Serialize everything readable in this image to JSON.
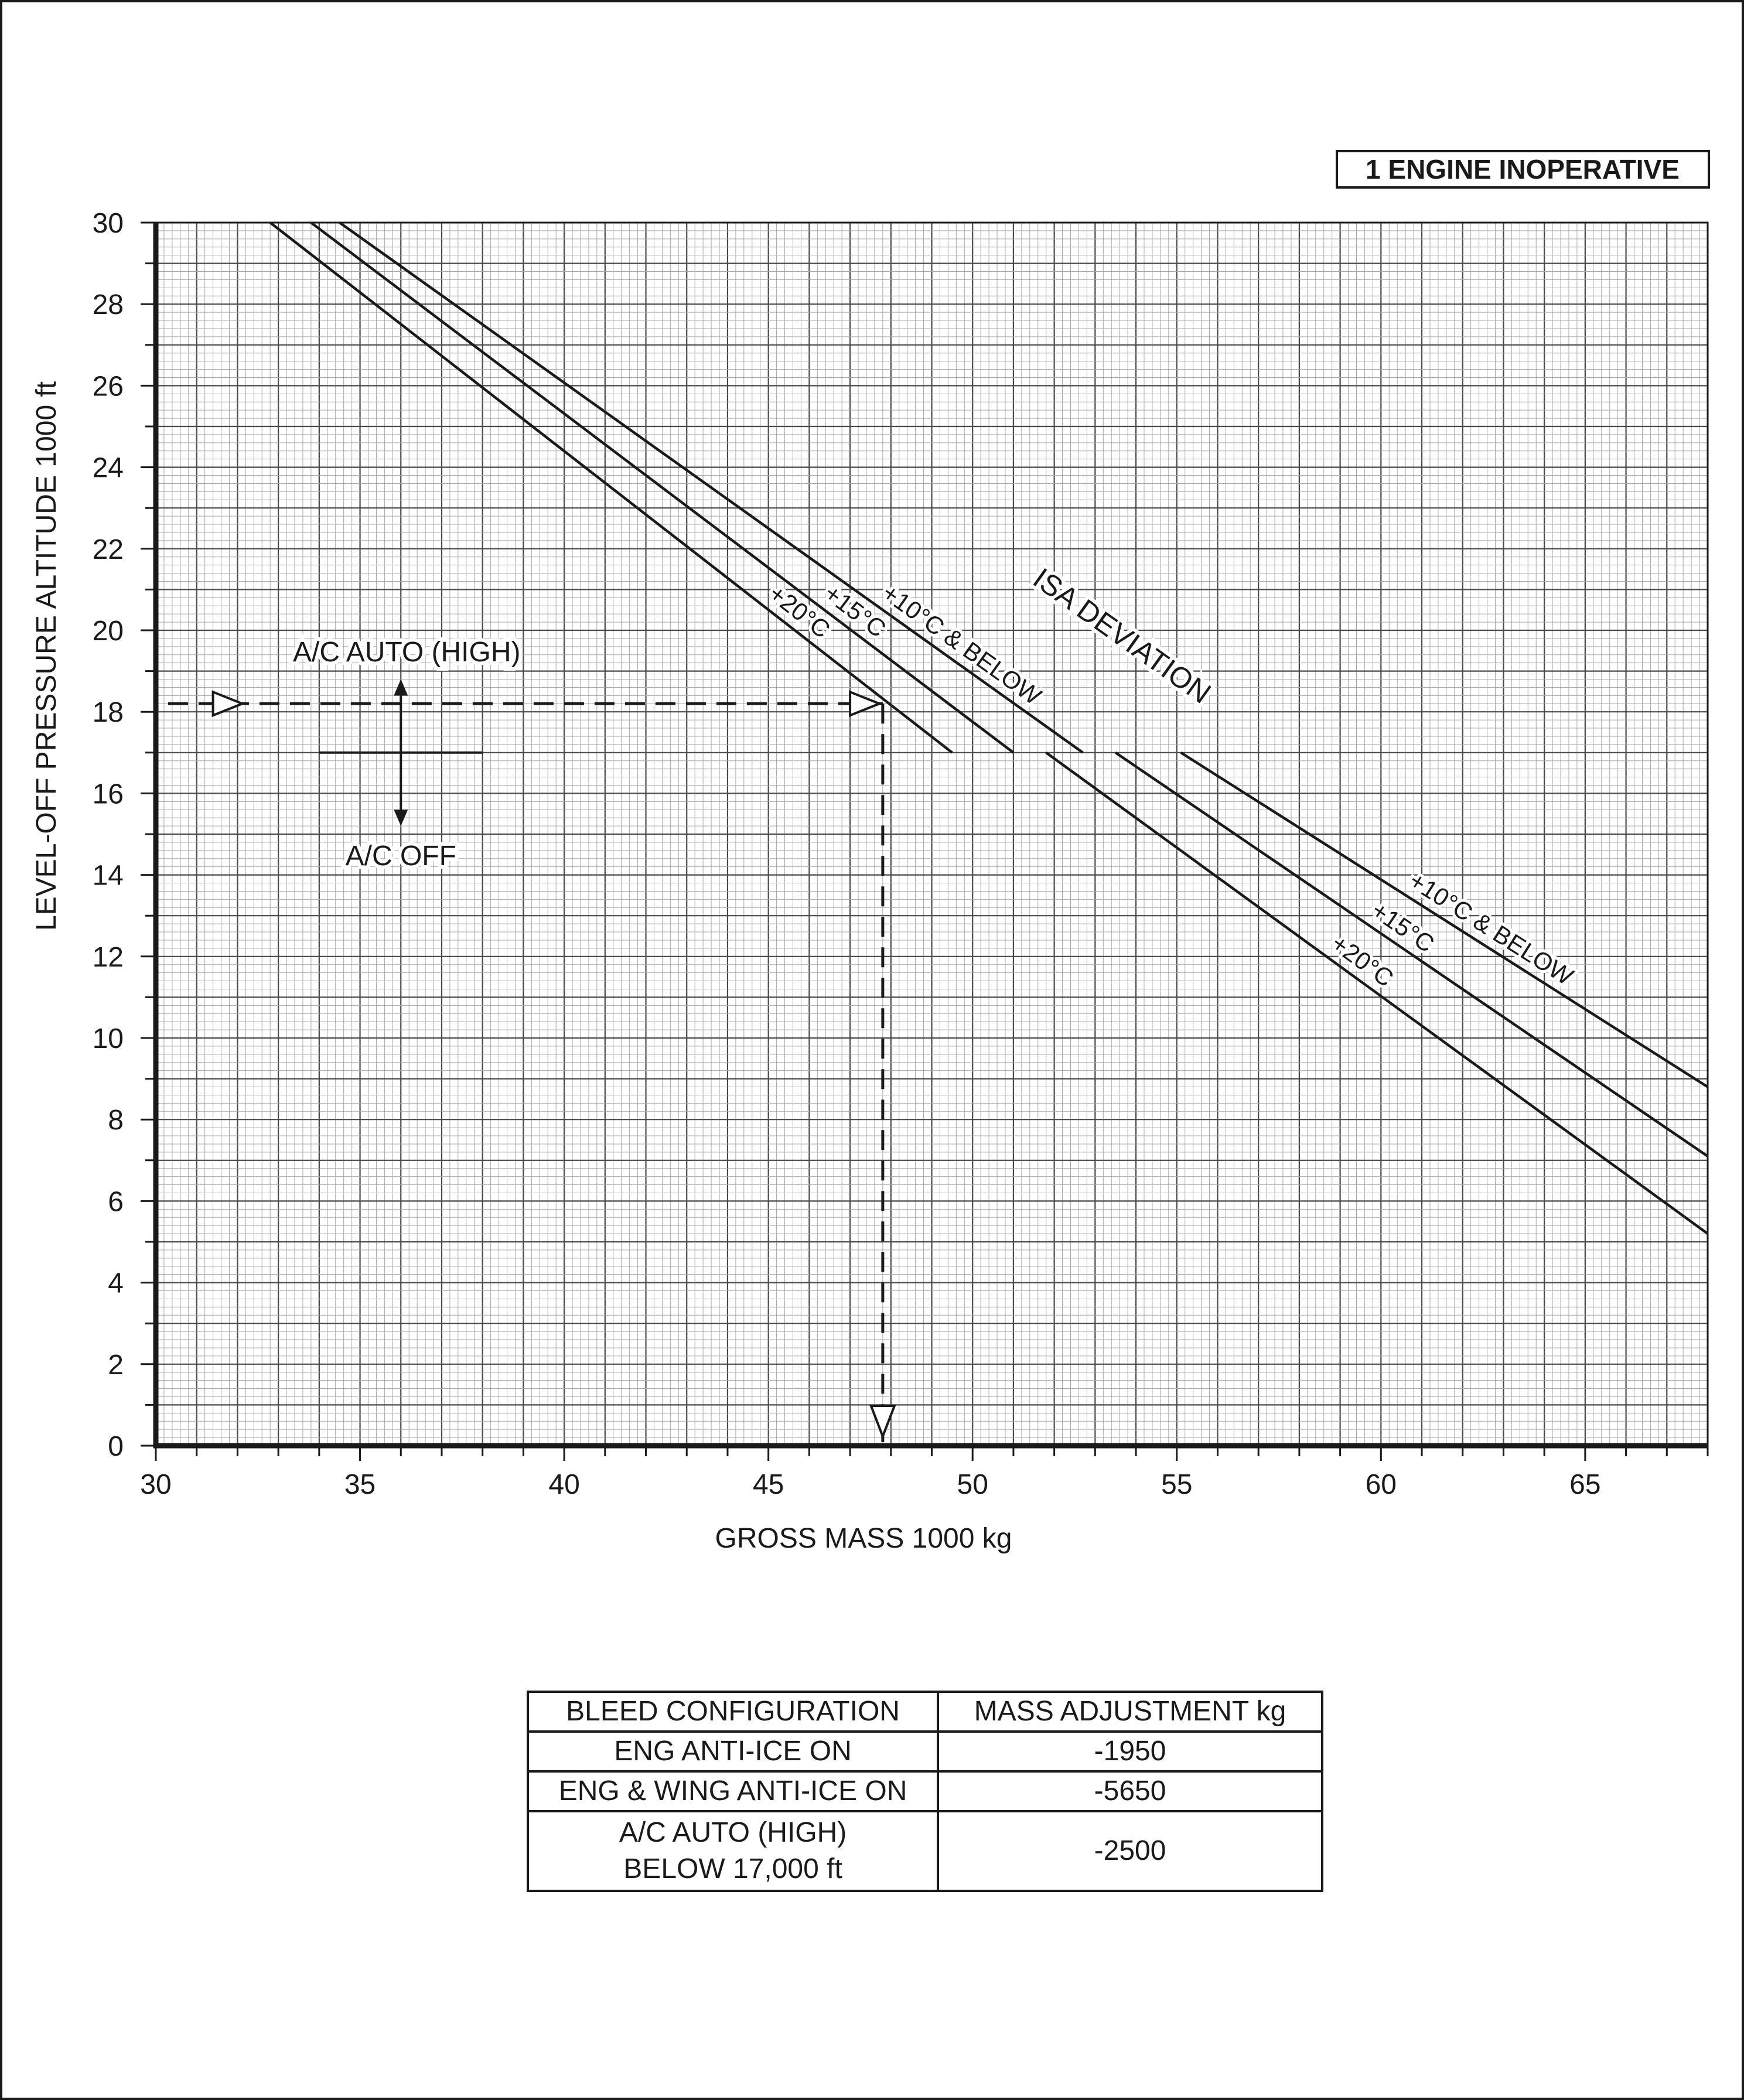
{
  "chart_data": {
    "type": "line",
    "title": "",
    "badge": "1 ENGINE INOPERATIVE",
    "xlabel": "GROSS MASS  1000 kg",
    "ylabel": "LEVEL-OFF PRESSURE ALTITUDE  1000 ft",
    "xlim": [
      30,
      68
    ],
    "ylim": [
      0,
      30
    ],
    "x_ticks": [
      "30",
      "35",
      "40",
      "45",
      "50",
      "55",
      "60",
      "65"
    ],
    "y_ticks": [
      "0",
      "2",
      "4",
      "6",
      "8",
      "10",
      "12",
      "14",
      "16",
      "18",
      "20",
      "22",
      "24",
      "26",
      "28",
      "30"
    ],
    "grid": true,
    "series": [
      {
        "name": "+10°C & BELOW",
        "group": "A/C AUTO (HIGH)",
        "x": [
          34.5,
          52.7
        ],
        "y": [
          30,
          17
        ]
      },
      {
        "name": "+15°C",
        "group": "A/C AUTO (HIGH)",
        "x": [
          33.8,
          51.0
        ],
        "y": [
          30,
          17
        ]
      },
      {
        "name": "+20°C",
        "group": "A/C AUTO (HIGH)",
        "x": [
          32.8,
          49.5
        ],
        "y": [
          30,
          17
        ]
      },
      {
        "name": "+10°C & BELOW",
        "group": "A/C OFF",
        "x": [
          55.1,
          68.0
        ],
        "y": [
          17,
          8.8
        ]
      },
      {
        "name": "+15°C",
        "group": "A/C OFF",
        "x": [
          53.5,
          68.0
        ],
        "y": [
          17,
          7.1
        ]
      },
      {
        "name": "+20°C",
        "group": "A/C OFF",
        "x": [
          51.8,
          68.0
        ],
        "y": [
          17,
          5.2
        ]
      }
    ],
    "group_label": "ISA DEVIATION",
    "example_path": {
      "start_x": 30.3,
      "altitude": 18.2,
      "mass": 47.8
    },
    "switch_altitude": 17,
    "switch_labels": {
      "above": "A/C AUTO (HIGH)",
      "below": "A/C OFF"
    }
  },
  "bleed_table": {
    "headers": [
      "BLEED CONFIGURATION",
      "MASS ADJUSTMENT  kg"
    ],
    "rows": [
      {
        "config": "ENG ANTI-ICE ON",
        "adjust": "-1950"
      },
      {
        "config": "ENG & WING ANTI-ICE ON",
        "adjust": "-5650"
      },
      {
        "config_line1": "A/C AUTO (HIGH)",
        "config_line2": "BELOW 17,000 ft",
        "adjust": "-2500"
      }
    ]
  }
}
